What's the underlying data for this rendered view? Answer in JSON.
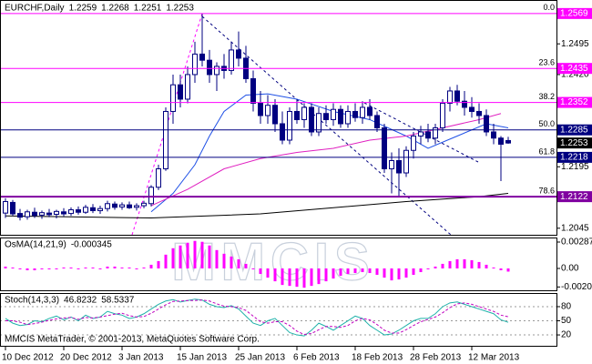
{
  "chart_data": [
    {
      "type": "candlestick",
      "title": "EURCHF,Daily",
      "categories": [
        "10 Dec 2012",
        null,
        null,
        null,
        null,
        null,
        null,
        null,
        "20 Dec 2012",
        null,
        null,
        null,
        null,
        null,
        null,
        null,
        "3 Jan 2013",
        null,
        null,
        null,
        null,
        null,
        null,
        null,
        "15 Jan 2013",
        null,
        null,
        null,
        null,
        null,
        null,
        null,
        "25 Jan 2013",
        null,
        null,
        null,
        null,
        null,
        null,
        null,
        "6 Feb 2013",
        null,
        null,
        null,
        null,
        null,
        null,
        null,
        "18 Feb 2013",
        null,
        null,
        null,
        null,
        null,
        null,
        null,
        "28 Feb 2013",
        null,
        null,
        null,
        null,
        null,
        null,
        null,
        "12 Mar 2013",
        null,
        null,
        null,
        null,
        null
      ],
      "open": [
        1.2082,
        1.2108,
        1.2081,
        1.2073,
        1.2084,
        1.2077,
        1.2082,
        1.2079,
        1.2085,
        1.2081,
        1.209,
        1.2084,
        1.2095,
        1.2088,
        1.2093,
        1.2104,
        1.2097,
        1.2102,
        1.2096,
        1.21,
        1.2105,
        1.2145,
        1.219,
        1.233,
        1.2395,
        1.236,
        1.242,
        1.247,
        1.2455,
        1.242,
        1.244,
        1.243,
        1.248,
        1.246,
        1.241,
        1.235,
        1.232,
        1.2345,
        1.23,
        1.226,
        1.233,
        1.231,
        1.234,
        1.228,
        1.2325,
        1.231,
        1.2335,
        1.23,
        1.233,
        1.2315,
        1.234,
        1.232,
        1.229,
        1.219,
        1.221,
        1.218,
        1.2235,
        1.227,
        1.228,
        1.2265,
        1.229,
        1.235,
        1.238,
        1.2355,
        1.234,
        1.233,
        1.232,
        1.228,
        1.2265,
        1.2259
      ],
      "high": [
        1.2118,
        1.2114,
        1.2092,
        1.209,
        1.2095,
        1.2088,
        1.2092,
        1.209,
        1.2094,
        1.2096,
        1.2098,
        1.2102,
        1.2104,
        1.21,
        1.2112,
        1.211,
        1.2108,
        1.211,
        1.2106,
        1.2112,
        1.215,
        1.22,
        1.234,
        1.242,
        1.242,
        1.244,
        1.25,
        1.2569,
        1.248,
        1.245,
        1.247,
        1.25,
        1.2525,
        1.249,
        1.243,
        1.238,
        1.237,
        1.236,
        1.233,
        1.234,
        1.236,
        1.235,
        1.235,
        1.234,
        1.2345,
        1.235,
        1.2345,
        1.2345,
        1.235,
        1.2355,
        1.236,
        1.233,
        1.23,
        1.223,
        1.224,
        1.2245,
        1.228,
        1.2295,
        1.23,
        1.23,
        1.236,
        1.239,
        1.2395,
        1.238,
        1.2365,
        1.235,
        1.2335,
        1.23,
        1.227,
        1.2268
      ],
      "low": [
        1.207,
        1.2075,
        1.2064,
        1.2066,
        1.207,
        1.2068,
        1.2072,
        1.2069,
        1.2074,
        1.2075,
        1.2078,
        1.208,
        1.2082,
        1.208,
        1.2086,
        1.209,
        1.209,
        1.2092,
        1.2088,
        1.2094,
        1.2098,
        1.2138,
        1.2185,
        1.23,
        1.234,
        1.235,
        1.24,
        1.244,
        1.24,
        1.238,
        1.241,
        1.242,
        1.244,
        1.24,
        1.233,
        1.23,
        1.23,
        1.228,
        1.225,
        1.225,
        1.23,
        1.229,
        1.227,
        1.227,
        1.23,
        1.2295,
        1.229,
        1.229,
        1.2305,
        1.23,
        1.231,
        1.228,
        1.218,
        1.213,
        1.2122,
        1.217,
        1.2215,
        1.225,
        1.2255,
        1.225,
        1.228,
        1.233,
        1.2345,
        1.232,
        1.2315,
        1.23,
        1.227,
        1.225,
        1.216,
        1.2251
      ],
      "close": [
        1.211,
        1.208,
        1.2072,
        1.2085,
        1.2076,
        1.2083,
        1.2078,
        1.2086,
        1.208,
        1.209,
        1.2084,
        1.2096,
        1.2088,
        1.2093,
        1.2105,
        1.2096,
        1.2102,
        1.2095,
        1.21,
        1.2106,
        1.2145,
        1.219,
        1.233,
        1.2395,
        1.236,
        1.242,
        1.247,
        1.2455,
        1.242,
        1.244,
        1.243,
        1.248,
        1.246,
        1.241,
        1.235,
        1.232,
        1.2345,
        1.23,
        1.226,
        1.233,
        1.231,
        1.234,
        1.228,
        1.2325,
        1.231,
        1.2335,
        1.23,
        1.233,
        1.2315,
        1.234,
        1.232,
        1.229,
        1.219,
        1.221,
        1.218,
        1.2235,
        1.227,
        1.228,
        1.2265,
        1.229,
        1.235,
        1.238,
        1.2355,
        1.234,
        1.233,
        1.232,
        1.228,
        1.2265,
        1.225,
        1.2253
      ],
      "color": "#000080",
      "ylim": [
        1.2029,
        1.2602
      ],
      "yticks": [
        1.2495,
        {
          "value": 1.242,
          "label": "1.2420"
        },
        1.2195,
        1.2045
      ],
      "moving_averages": [
        {
          "color": "#1e50e6",
          "x": [
            20,
            23,
            26,
            28,
            30,
            33,
            36,
            40,
            45,
            50,
            55,
            58,
            62,
            66,
            69
          ],
          "values": [
            1.2085,
            1.213,
            1.22,
            1.227,
            1.233,
            1.237,
            1.2373,
            1.236,
            1.233,
            1.231,
            1.227,
            1.224,
            1.227,
            1.23,
            1.229
          ]
        },
        {
          "color": "#e020c0",
          "x": [
            20,
            25,
            30,
            35,
            40,
            45,
            50,
            55,
            60,
            65,
            68
          ],
          "values": [
            1.21,
            1.214,
            1.219,
            1.2215,
            1.223,
            1.224,
            1.226,
            1.227,
            1.229,
            1.231,
            1.2325
          ]
        },
        {
          "color": "#000000",
          "x": [
            0,
            20,
            35,
            45,
            55,
            65,
            69
          ],
          "values": [
            1.2075,
            1.207,
            1.208,
            1.2095,
            1.211,
            1.2122,
            1.213
          ]
        }
      ],
      "levels": [
        {
          "fib": "0.0",
          "price": 1.2569,
          "color": "#ff00ff"
        },
        {
          "fib": "23.6",
          "price": 1.2435,
          "color": "#ff00ff"
        },
        {
          "fib": "38.2",
          "price": 1.2352,
          "color": "#ff00ff"
        },
        {
          "fib": "50.0",
          "price": 1.2285,
          "color": "#000080"
        },
        {
          "fib": "61.8",
          "price": 1.2218,
          "color": "#000080"
        },
        {
          "fib": "78.6",
          "price": 1.2122,
          "color": "#8000a0"
        }
      ],
      "watermark": "MMCIS",
      "footer": "MMCIS MetaTrader, © 2001-2013, MetaQuotes Software Corp."
    },
    {
      "type": "bar",
      "title": "OsMA(14,21,9)",
      "color": "#ff00ff",
      "values": [
        0.0002,
        0.0001,
        -0.0001,
        -0.0002,
        -0.0002,
        -0.0001,
        -0.0001,
        0.0,
        0.0001,
        0.0001,
        0.0,
        0.0001,
        0.0001,
        0.0,
        0.0002,
        0.0002,
        0.0001,
        0.0001,
        0.0,
        0.0001,
        0.0004,
        0.0008,
        0.0015,
        0.0022,
        0.0025,
        0.0028,
        0.003,
        0.0029,
        0.0025,
        0.002,
        0.0016,
        0.0013,
        0.001,
        0.0005,
        -0.0001,
        -0.0006,
        -0.001,
        -0.0014,
        -0.0018,
        -0.0019,
        -0.002,
        -0.0021,
        -0.0019,
        -0.0017,
        -0.0014,
        -0.0011,
        -0.0008,
        -0.0006,
        -0.0005,
        -0.0004,
        -0.0005,
        -0.0007,
        -0.001,
        -0.0013,
        -0.0012,
        -0.001,
        -0.0007,
        -0.0004,
        -0.0001,
        0.0002,
        0.0005,
        0.0008,
        0.001,
        0.001,
        0.0009,
        0.0007,
        0.0004,
        0.0001,
        -0.0002,
        -0.000345
      ],
      "ylim": [
        -0.00248,
        0.00327
      ],
      "yticks": [
        0.002875,
        {
          "value": 0,
          "label": "0.00"
        },
        -0.00202
      ]
    },
    {
      "type": "line",
      "title": "Stoch(14,3,3)",
      "series": [
        {
          "color": "#20b2aa",
          "values": [
            55,
            45,
            40,
            42,
            50,
            48,
            55,
            60,
            52,
            58,
            50,
            62,
            55,
            58,
            70,
            65,
            62,
            55,
            58,
            65,
            75,
            85,
            92,
            95,
            90,
            93,
            96,
            94,
            85,
            80,
            78,
            82,
            75,
            60,
            45,
            40,
            50,
            55,
            40,
            25,
            20,
            18,
            30,
            45,
            38,
            30,
            40,
            50,
            60,
            55,
            40,
            30,
            20,
            22,
            30,
            40,
            50,
            55,
            55,
            65,
            80,
            88,
            90,
            85,
            80,
            75,
            70,
            65,
            52,
            46.8232
          ]
        },
        {
          "color": "#c000c0",
          "dashed": true,
          "values": [
            50,
            50,
            47,
            42,
            44,
            47,
            51,
            54,
            56,
            57,
            53,
            57,
            56,
            58,
            61,
            64,
            66,
            61,
            58,
            59,
            66,
            75,
            84,
            91,
            92,
            93,
            93,
            94,
            92,
            86,
            81,
            80,
            78,
            72,
            60,
            48,
            45,
            48,
            48,
            40,
            28,
            21,
            23,
            31,
            38,
            38,
            36,
            40,
            50,
            55,
            52,
            42,
            30,
            24,
            24,
            31,
            40,
            48,
            53,
            58,
            67,
            78,
            86,
            88,
            85,
            80,
            75,
            70,
            62,
            58.5337
          ]
        }
      ],
      "ylim": [
        -5,
        107
      ],
      "yticks": [
        80,
        50,
        20
      ]
    }
  ]
}
